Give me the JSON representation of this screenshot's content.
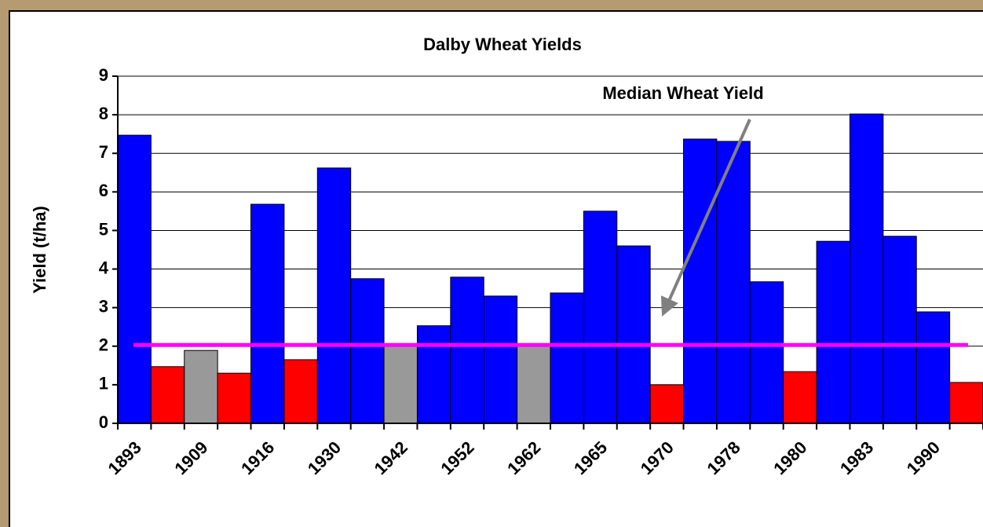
{
  "chart_data": {
    "type": "bar",
    "title": "Dalby Wheat Yields",
    "y_label": "Yield (t/ha)",
    "categories": [
      "1893",
      null,
      "1909",
      null,
      "1916",
      null,
      "1930",
      null,
      "1942",
      null,
      "1952",
      null,
      "1962",
      null,
      "1965",
      null,
      "1970",
      null,
      "1978",
      null,
      "1980",
      null,
      "1983",
      null,
      "1990",
      null
    ],
    "values": [
      7.47,
      1.47,
      1.89,
      1.3,
      5.68,
      1.65,
      6.62,
      3.75,
      2.02,
      2.53,
      3.79,
      3.3,
      2.05,
      3.38,
      5.5,
      4.6,
      1.0,
      7.37,
      7.31,
      3.67,
      1.34,
      4.72,
      8.02,
      4.85,
      2.89,
      1.06
    ],
    "colors": [
      "#0000ff",
      "#ff0000",
      "#999999",
      "#ff0000",
      "#0000ff",
      "#ff0000",
      "#0000ff",
      "#0000ff",
      "#999999",
      "#0000ff",
      "#0000ff",
      "#0000ff",
      "#999999",
      "#0000ff",
      "#0000ff",
      "#0000ff",
      "#ff0000",
      "#0000ff",
      "#0000ff",
      "#0000ff",
      "#ff0000",
      "#0000ff",
      "#0000ff",
      "#0000ff",
      "#0000ff",
      "#ff0000"
    ],
    "ylim": [
      0,
      9
    ],
    "yticks": [
      0,
      1,
      2,
      3,
      4,
      5,
      6,
      7,
      8,
      9
    ],
    "grid": true,
    "reference_line": {
      "value": 2.03,
      "label": "Median Wheat Yield",
      "color": "#ff00ff"
    }
  }
}
